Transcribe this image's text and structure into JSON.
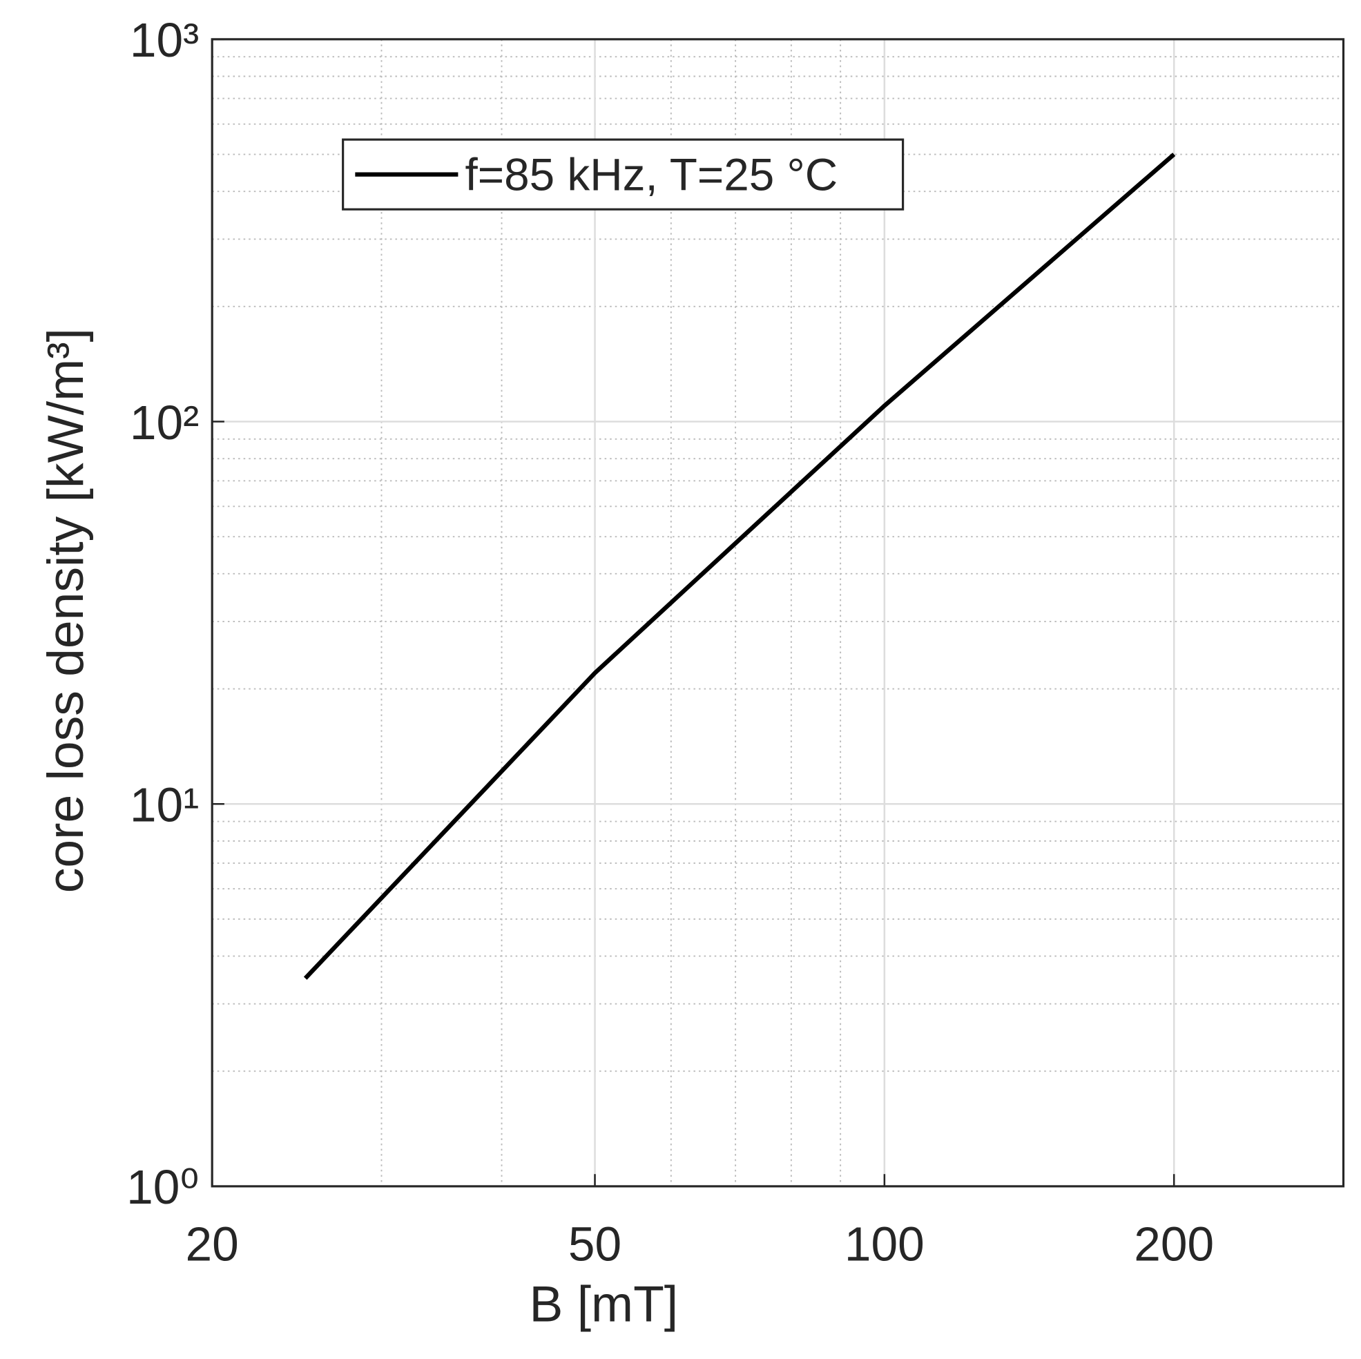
{
  "chart_data": {
    "type": "line",
    "xlabel": "B [mT]",
    "ylabel": "core loss density [kW/m³]",
    "xscale": "log",
    "yscale": "log",
    "xlim": [
      20,
      300
    ],
    "xticks": [
      20,
      50,
      100,
      200
    ],
    "xminorticks": [
      30,
      40,
      60,
      70,
      80,
      90
    ],
    "ylim": [
      1,
      1000
    ],
    "yticks": [
      {
        "value": 1,
        "label": "10⁰"
      },
      {
        "value": 10,
        "label": "10¹"
      },
      {
        "value": 100,
        "label": "10²"
      },
      {
        "value": 1000,
        "label": "10³"
      }
    ],
    "yminorticks": [
      2,
      3,
      4,
      5,
      6,
      7,
      8,
      9,
      20,
      30,
      40,
      50,
      60,
      70,
      80,
      90,
      200,
      300,
      400,
      500,
      600,
      700,
      800,
      900
    ],
    "grid": true,
    "minor_grid": true,
    "legend_loc": "upper left",
    "series": [
      {
        "name": "f=85 kHz, T=25 °C",
        "color": "#000000",
        "x": [
          25,
          50,
          100,
          200
        ],
        "values": [
          3.5,
          22,
          110,
          500
        ]
      }
    ]
  }
}
